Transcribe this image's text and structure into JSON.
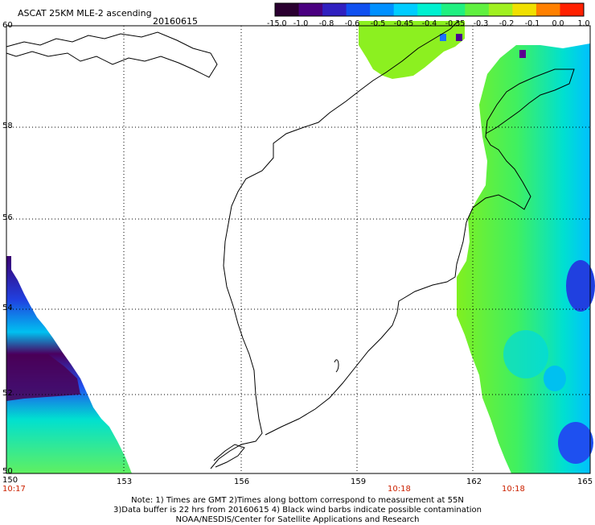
{
  "title": "ASCAT 25KM MLE-2 ascending",
  "date": "20160615",
  "colorbar": {
    "labels": [
      "-15.0",
      "-1.0",
      "-0.8",
      "-0.6",
      "-0.5",
      "-0.45",
      "-0.4",
      "-0.35",
      "-0.3",
      "-0.2",
      "-0.1",
      "0.0",
      "1.0"
    ],
    "colors": [
      "#2a0030",
      "#4a0080",
      "#3020c0",
      "#1050f0",
      "#0090ff",
      "#00ccff",
      "#00f0d0",
      "#20f080",
      "#60f040",
      "#a0f020",
      "#f0e000",
      "#ff8000",
      "#ff2000"
    ]
  },
  "axes": {
    "lon_labels": [
      "150",
      "153",
      "156",
      "159",
      "162",
      "165"
    ],
    "lat_labels": [
      "60",
      "58",
      "56",
      "54",
      "52",
      "50"
    ]
  },
  "time_labels": [
    "10:17",
    "10:18",
    "10:18"
  ],
  "notes": [
    "Note: 1) Times are GMT 2)Times along bottom correspond to measurement at 55N",
    "3)Data buffer is 22 hrs from 20160615 4) Black wind barbs indicate possible contamination",
    "NOAA/NESDIS/Center for Satellite Applications and Research"
  ]
}
